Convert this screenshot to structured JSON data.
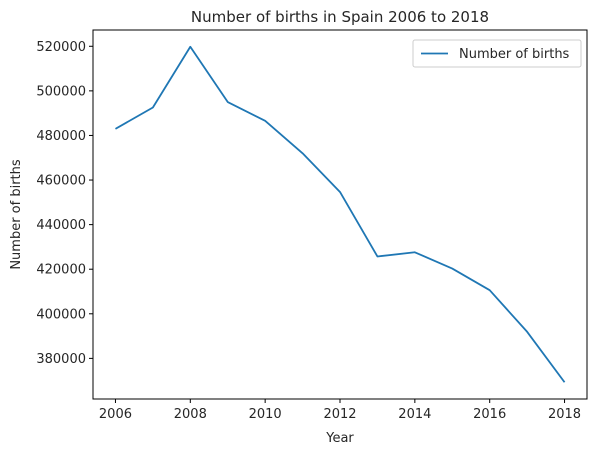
{
  "chart_data": {
    "type": "line",
    "title": "Number of births in Spain 2006 to 2018",
    "xlabel": "Year",
    "ylabel": "Number of births",
    "x": [
      2006,
      2007,
      2008,
      2009,
      2010,
      2011,
      2012,
      2013,
      2014,
      2015,
      2016,
      2017,
      2018
    ],
    "series": [
      {
        "name": "Number of births",
        "color": "#1f77b4",
        "values": [
          482957,
          492527,
          519779,
          494997,
          486575,
          471999,
          454648,
          425715,
          427595,
          420290,
          410583,
          391930,
          369302
        ]
      }
    ],
    "xlim": [
      2005.4,
      2018.6
    ],
    "ylim": [
      361779,
      527302
    ],
    "xticks": [
      "2006",
      "2008",
      "2010",
      "2012",
      "2014",
      "2016",
      "2018"
    ],
    "yticks": [
      "380000",
      "400000",
      "420000",
      "440000",
      "460000",
      "480000",
      "500000",
      "520000"
    ],
    "legend_position": "top-right",
    "grid": false
  }
}
